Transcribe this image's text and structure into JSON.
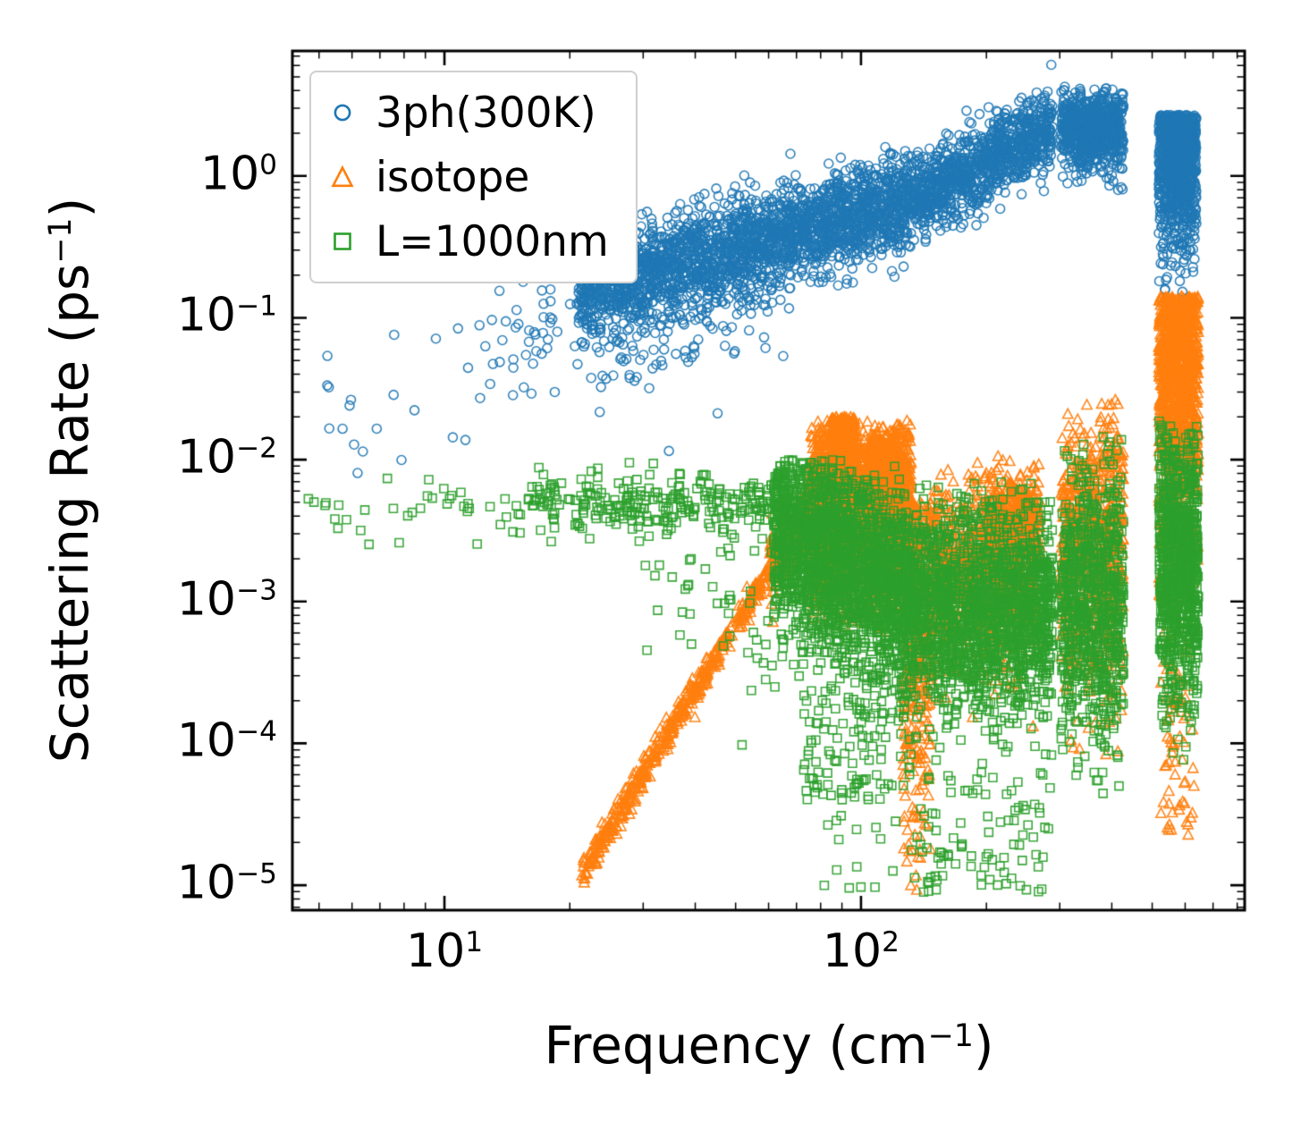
{
  "figure": {
    "xlabel": {
      "pre": "Frequency (cm",
      "sup": "−1",
      "post": ")"
    },
    "ylabel": {
      "pre": "Scattering Rate (ps",
      "sup": "−1",
      "post": ")"
    }
  },
  "chart_data": {
    "type": "scatter",
    "title": "",
    "xlabel": "Frequency (cm^-1)",
    "ylabel": "Scattering Rate (ps^-1)",
    "x_scale": "log",
    "y_scale": "log",
    "xlim": [
      4.3,
      830
    ],
    "ylim": [
      6.6e-06,
      7.6
    ],
    "grid": false,
    "legend_position": "upper left",
    "axes": {
      "x": {
        "log_min": 0.635,
        "log_max": 2.921,
        "majors": [
          {
            "log": 1,
            "exp": "1"
          },
          {
            "log": 2,
            "exp": "2"
          }
        ]
      },
      "y": {
        "log_min": -5.176,
        "log_max": 0.881,
        "majors": [
          {
            "log": 0,
            "exp": "0"
          },
          {
            "log": -1,
            "exp": "−1"
          },
          {
            "log": -2,
            "exp": "−2"
          },
          {
            "log": -3,
            "exp": "−3"
          },
          {
            "log": -4,
            "exp": "−4"
          },
          {
            "log": -5,
            "exp": "−5"
          }
        ]
      }
    },
    "series": [
      {
        "name": "3ph(300K)",
        "color": "#1f77b4",
        "marker": "circle",
        "clusters": [
          {
            "mode": "trend",
            "n": 18,
            "lx": [
              0.66,
              1.05
            ],
            "ly": [
              -1.6,
              -1.35
            ],
            "s": 0.33
          },
          {
            "mode": "trend",
            "n": 50,
            "lx": [
              1.05,
              1.32
            ],
            "ly": [
              -1.35,
              -0.95
            ],
            "s": 0.3
          },
          {
            "mode": "trend",
            "n": 2400,
            "lx": [
              1.32,
              2.12
            ],
            "ly": [
              -0.82,
              -0.18
            ],
            "s": 0.17
          },
          {
            "mode": "trend",
            "n": 150,
            "lx": [
              1.35,
              1.82
            ],
            "ly": [
              -1.25,
              -0.8
            ],
            "s": 0.22
          },
          {
            "mode": "trend",
            "n": 1000,
            "lx": [
              2.12,
              2.46
            ],
            "ly": [
              -0.18,
              0.34
            ],
            "s": 0.14
          },
          {
            "mode": "gauss",
            "n": 700,
            "lx": [
              2.48,
              2.63
            ],
            "cy": 0.33,
            "s": 0.15,
            "clip": [
              -0.1,
              0.63
            ]
          },
          {
            "mode": "topheavy",
            "n": 1000,
            "lx": [
              2.715,
              2.805
            ],
            "top": 0.43,
            "tail": 0.45,
            "clip": [
              -0.95,
              0.43
            ]
          }
        ]
      },
      {
        "name": "isotope",
        "color": "#ff7f0e",
        "marker": "triangle",
        "clusters": [
          {
            "mode": "trend",
            "n": 450,
            "lx": [
              1.33,
              1.78
            ],
            "ly": [
              -4.92,
              -2.78
            ],
            "s": 0.05
          },
          {
            "mode": "trend",
            "n": 300,
            "lx": [
              1.78,
              1.9
            ],
            "ly": [
              -2.78,
              -2.3
            ],
            "s": 0.12
          },
          {
            "mode": "gauss",
            "n": 2600,
            "lx": [
              1.88,
              2.12
            ],
            "cy": -2.35,
            "s": 0.3,
            "clip": [
              -3.2,
              -1.72
            ]
          },
          {
            "mode": "topheavy",
            "n": 500,
            "lx": [
              1.925,
              1.985
            ],
            "top": -1.7,
            "tail": 0.45
          },
          {
            "mode": "topheavy",
            "n": 350,
            "lx": [
              2.02,
              2.085
            ],
            "top": -1.86,
            "tail": 0.4
          },
          {
            "mode": "topheavy",
            "n": 420,
            "lx": [
              2.1,
              2.17
            ],
            "top": -2.3,
            "tail": 1.2,
            "clip": [
              -5.05,
              -2.3
            ]
          },
          {
            "mode": "gauss",
            "n": 900,
            "lx": [
              2.17,
              2.42
            ],
            "cy": -2.8,
            "s": 0.3,
            "clip": [
              -3.9,
              -2.0
            ]
          },
          {
            "mode": "gauss",
            "n": 280,
            "lx": [
              2.3,
              2.43
            ],
            "cy": -2.4,
            "s": 0.18
          },
          {
            "mode": "gauss",
            "n": 700,
            "lx": [
              2.48,
              2.63
            ],
            "cy": -2.7,
            "s": 0.5,
            "clip": [
              -4.2,
              -1.52
            ]
          },
          {
            "mode": "topheavy",
            "n": 1100,
            "lx": [
              2.715,
              2.81
            ],
            "top": -0.85,
            "tail": 0.85,
            "clip": [
              -3.3,
              -0.85
            ]
          },
          {
            "mode": "box",
            "n": 70,
            "lx": [
              2.72,
              2.8
            ],
            "ly": [
              -4.7,
              -3.2
            ]
          }
        ]
      },
      {
        "name": "L=1000nm",
        "color": "#2ca02c",
        "marker": "square",
        "clusters": [
          {
            "mode": "gauss",
            "n": 40,
            "lx": [
              0.66,
              1.2
            ],
            "cy": -2.35,
            "s": 0.13,
            "clip": [
              -2.62,
              -2.05
            ]
          },
          {
            "mode": "gauss",
            "n": 260,
            "lx": [
              1.2,
              1.79
            ],
            "cy": -2.3,
            "s": 0.11,
            "clip": [
              -2.6,
              -2.02
            ]
          },
          {
            "mode": "trend",
            "n": 50,
            "lx": [
              1.48,
              1.82
            ],
            "ly": [
              -2.7,
              -3.2
            ],
            "s": 0.3
          },
          {
            "mode": "trend",
            "n": 2000,
            "lx": [
              1.79,
              2.12
            ],
            "ly": [
              -2.45,
              -2.95
            ],
            "s": 0.33,
            "clip": [
              -4.2,
              -2.0
            ]
          },
          {
            "mode": "box",
            "n": 160,
            "lx": [
              1.86,
              2.12
            ],
            "ly": [
              -4.4,
              -3.3
            ]
          },
          {
            "mode": "gauss",
            "n": 1700,
            "lx": [
              2.12,
              2.46
            ],
            "cy": -3.05,
            "s": 0.38,
            "clip": [
              -4.3,
              -2.15
            ]
          },
          {
            "mode": "box",
            "n": 90,
            "lx": [
              2.12,
              2.46
            ],
            "ly": [
              -5.05,
              -4.2
            ]
          },
          {
            "mode": "gauss",
            "n": 800,
            "lx": [
              2.48,
              2.63
            ],
            "cy": -3.0,
            "s": 0.5,
            "clip": [
              -4.65,
              -1.78
            ]
          },
          {
            "mode": "gauss",
            "n": 900,
            "lx": [
              2.715,
              2.81
            ],
            "cy": -2.75,
            "s": 0.5,
            "clip": [
              -4.7,
              -1.72
            ]
          },
          {
            "mode": "box",
            "n": 18,
            "lx": [
              1.9,
              2.2
            ],
            "ly": [
              -5.05,
              -4.5
            ]
          }
        ]
      }
    ]
  }
}
